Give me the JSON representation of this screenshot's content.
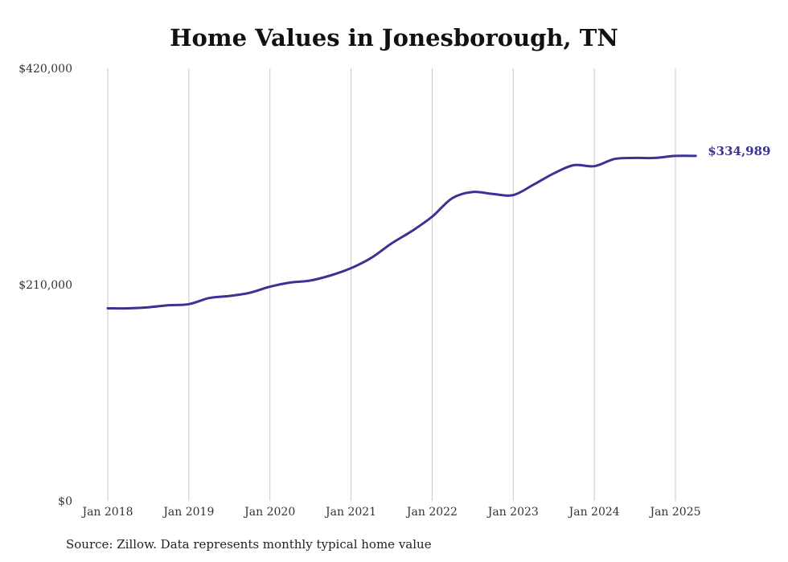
{
  "chart_data": {
    "type": "line",
    "title": "Home Values in Jonesborough, TN",
    "xlabel": "",
    "ylabel": "",
    "ylim": [
      0,
      420000
    ],
    "y_ticks": [
      0,
      210000,
      420000
    ],
    "y_tick_labels": [
      "$0",
      "$210,000",
      "$420,000"
    ],
    "x_ticks": [
      "2018-01",
      "2019-01",
      "2020-01",
      "2021-01",
      "2022-01",
      "2023-01",
      "2024-01",
      "2025-01"
    ],
    "x_tick_labels": [
      "Jan 2018",
      "Jan 2019",
      "Jan 2020",
      "Jan 2021",
      "Jan 2022",
      "Jan 2023",
      "Jan 2024",
      "Jan 2025"
    ],
    "grid": "vertical lines at x ticks",
    "line_color": "#3a3396",
    "end_label": "$334,989",
    "series": [
      {
        "x": [
          "2018-01",
          "2018-04",
          "2018-07",
          "2018-10",
          "2019-01",
          "2019-04",
          "2019-07",
          "2019-10",
          "2020-01",
          "2020-04",
          "2020-07",
          "2020-10",
          "2021-01",
          "2021-04",
          "2021-07",
          "2021-10",
          "2022-01",
          "2022-04",
          "2022-07",
          "2022-10",
          "2023-01",
          "2023-04",
          "2023-07",
          "2023-10",
          "2024-01",
          "2024-04",
          "2024-07",
          "2024-10",
          "2025-01",
          "2025-04"
        ],
        "values": [
          187000,
          187000,
          188000,
          190000,
          191000,
          197000,
          199000,
          202000,
          208000,
          212000,
          214000,
          219000,
          226000,
          236000,
          250000,
          262000,
          276000,
          294000,
          300000,
          298000,
          297000,
          307000,
          318000,
          326000,
          325000,
          332000,
          333000,
          333000,
          335000,
          334989
        ]
      }
    ]
  },
  "footer": {
    "source": "Source: Zillow. Data represents monthly typical home value"
  }
}
